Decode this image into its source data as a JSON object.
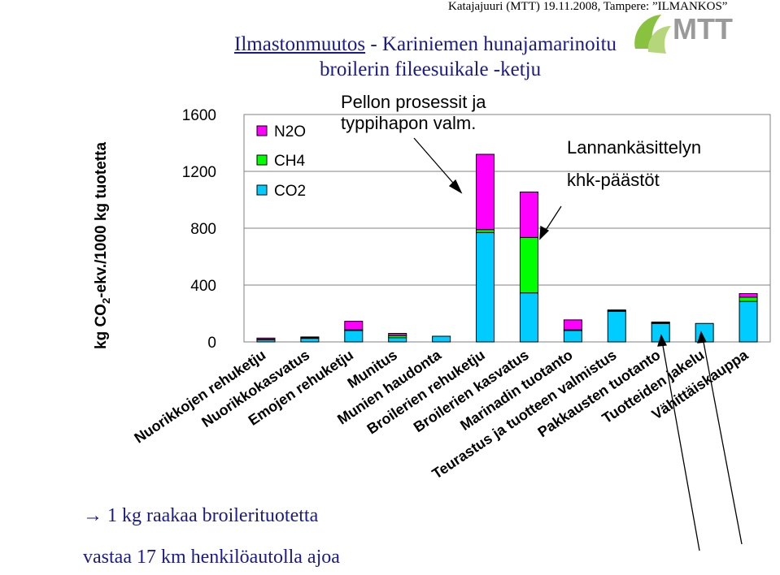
{
  "header": {
    "source_credit": "Katajajuuri (MTT) 19.11.2008, Tampere: ”ILMANKOS”",
    "logo_text": "MTT",
    "title_link": "Ilmastonmuutos",
    "title_rest": " - Kariniemen hunajamarinoitu",
    "title_line2": "broilerin fileesuikale -ketju"
  },
  "footnote": {
    "line1": "→ 1 kg raakaa broilerituotetta",
    "line2": "vastaa 17 km henkilöautolla ajoa"
  },
  "colors": {
    "N2O": "#ff00ff",
    "CH4": "#00ff00",
    "CO2": "#00ccff",
    "title": "#1a1a8a"
  },
  "chart_data": {
    "type": "bar",
    "stacked": true,
    "title": "Ilmastonmuutos - Kariniemen hunajamarinoitu broilerin fileesuikale -ketju",
    "ylabel_main": "kg CO",
    "ylabel_sub": "2",
    "ylabel_rest": "-ekv./1000 kg tuotetta",
    "ylim": [
      0,
      1600
    ],
    "yticks": [
      0,
      400,
      800,
      1200,
      1600
    ],
    "grid": true,
    "legend_position": "top-left",
    "categories": [
      "Nuorikkojen rehuketju",
      "Nuorikkokasvatus",
      "Emojen rehuketju",
      "Munitus",
      "Munien haudonta",
      "Broilerien rehuketju",
      "Broilerien kasvatus",
      "Marinadin tuotanto",
      "Teurastus ja tuotteen valmistus",
      "Pakkausten tuotanto",
      "Tuotteiden jakelu",
      "Vähittäiskauppa"
    ],
    "series": [
      {
        "name": "CO2",
        "values": [
          15,
          25,
          80,
          30,
          40,
          770,
          345,
          80,
          215,
          130,
          130,
          285
        ]
      },
      {
        "name": "CH4",
        "values": [
          2,
          5,
          5,
          15,
          0,
          20,
          390,
          5,
          5,
          5,
          0,
          30
        ]
      },
      {
        "name": "N2O",
        "values": [
          10,
          5,
          60,
          15,
          0,
          530,
          320,
          70,
          5,
          5,
          0,
          25
        ]
      }
    ],
    "legend_order": [
      "N2O",
      "CH4",
      "CO2"
    ],
    "annotations": [
      {
        "text_line1": "Pellon prosessit ja",
        "text_line2": "typpihapon valm."
      },
      {
        "text_line1": "Lannankäsittelyn",
        "text_line2": "khk-päästöt"
      }
    ]
  }
}
